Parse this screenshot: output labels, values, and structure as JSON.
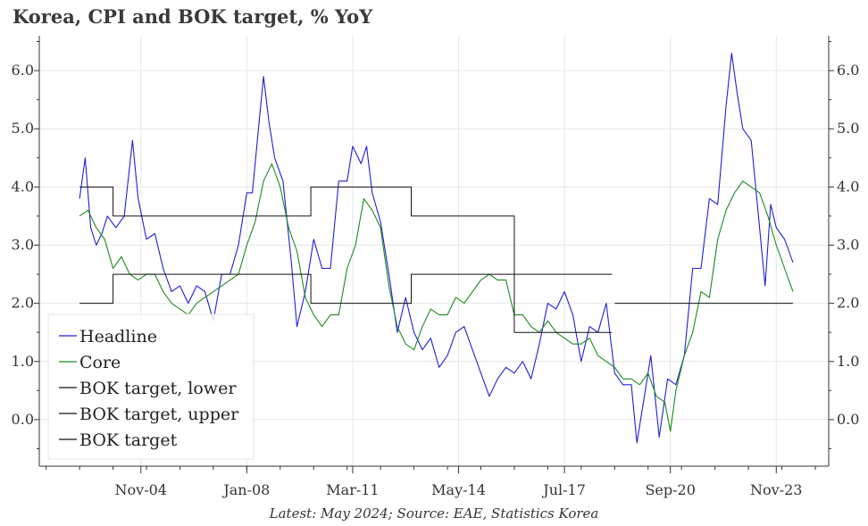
{
  "title": "Korea, CPI and BOK target, % YoY",
  "caption": "Latest: May 2024; Source: EAE, Statistics Korea",
  "colors": {
    "headline": "#1f1fd6",
    "core": "#1d8a1d",
    "target": "#111111",
    "grid": "#e6e6e6"
  },
  "chart_data": {
    "type": "line",
    "title": "Korea, CPI and BOK target, % YoY",
    "xlabel": "",
    "ylabel": "",
    "x_range": [
      "2002-12",
      "2024-05"
    ],
    "x_tick_labels": [
      "Nov-04",
      "Jan-08",
      "Mar-11",
      "May-14",
      "Jul-17",
      "Sep-20",
      "Nov-23"
    ],
    "x_tick_dates": [
      "2004-11",
      "2008-01",
      "2011-03",
      "2014-05",
      "2017-07",
      "2020-09",
      "2023-11"
    ],
    "ylim": [
      -0.8,
      6.6
    ],
    "y_ticks": [
      0.0,
      1.0,
      2.0,
      3.0,
      4.0,
      5.0,
      6.0
    ],
    "y_tick_labels": [
      "0.0",
      "1.0",
      "2.0",
      "3.0",
      "4.0",
      "5.0",
      "6.0"
    ],
    "grid": true,
    "legend_position": "bottom-left",
    "legend": [
      "Headline",
      "Core",
      "BOK target, lower",
      "BOK target, upper",
      "BOK target"
    ],
    "series": [
      {
        "name": "Headline",
        "points": [
          [
            "2003-01",
            3.8
          ],
          [
            "2003-03",
            4.5
          ],
          [
            "2003-05",
            3.3
          ],
          [
            "2003-07",
            3.0
          ],
          [
            "2003-09",
            3.2
          ],
          [
            "2003-11",
            3.5
          ],
          [
            "2004-02",
            3.3
          ],
          [
            "2004-05",
            3.5
          ],
          [
            "2004-08",
            4.8
          ],
          [
            "2004-10",
            3.8
          ],
          [
            "2005-01",
            3.1
          ],
          [
            "2005-04",
            3.2
          ],
          [
            "2005-07",
            2.6
          ],
          [
            "2005-10",
            2.2
          ],
          [
            "2006-01",
            2.3
          ],
          [
            "2006-04",
            2.0
          ],
          [
            "2006-07",
            2.3
          ],
          [
            "2006-10",
            2.2
          ],
          [
            "2007-01",
            1.7
          ],
          [
            "2007-04",
            2.5
          ],
          [
            "2007-07",
            2.5
          ],
          [
            "2007-10",
            3.0
          ],
          [
            "2008-01",
            3.9
          ],
          [
            "2008-03",
            3.9
          ],
          [
            "2008-05",
            4.9
          ],
          [
            "2008-07",
            5.9
          ],
          [
            "2008-09",
            5.1
          ],
          [
            "2008-11",
            4.5
          ],
          [
            "2009-02",
            4.1
          ],
          [
            "2009-05",
            2.7
          ],
          [
            "2009-07",
            1.6
          ],
          [
            "2009-10",
            2.2
          ],
          [
            "2010-01",
            3.1
          ],
          [
            "2010-04",
            2.6
          ],
          [
            "2010-07",
            2.6
          ],
          [
            "2010-10",
            4.1
          ],
          [
            "2011-01",
            4.1
          ],
          [
            "2011-03",
            4.7
          ],
          [
            "2011-06",
            4.4
          ],
          [
            "2011-08",
            4.7
          ],
          [
            "2011-10",
            3.9
          ],
          [
            "2012-01",
            3.4
          ],
          [
            "2012-04",
            2.5
          ],
          [
            "2012-07",
            1.5
          ],
          [
            "2012-10",
            2.1
          ],
          [
            "2013-01",
            1.5
          ],
          [
            "2013-04",
            1.2
          ],
          [
            "2013-07",
            1.4
          ],
          [
            "2013-10",
            0.9
          ],
          [
            "2014-01",
            1.1
          ],
          [
            "2014-04",
            1.5
          ],
          [
            "2014-07",
            1.6
          ],
          [
            "2014-10",
            1.2
          ],
          [
            "2015-01",
            0.8
          ],
          [
            "2015-04",
            0.4
          ],
          [
            "2015-07",
            0.7
          ],
          [
            "2015-10",
            0.9
          ],
          [
            "2016-01",
            0.8
          ],
          [
            "2016-04",
            1.0
          ],
          [
            "2016-07",
            0.7
          ],
          [
            "2016-10",
            1.3
          ],
          [
            "2017-01",
            2.0
          ],
          [
            "2017-04",
            1.9
          ],
          [
            "2017-07",
            2.2
          ],
          [
            "2017-10",
            1.8
          ],
          [
            "2018-01",
            1.0
          ],
          [
            "2018-04",
            1.6
          ],
          [
            "2018-07",
            1.5
          ],
          [
            "2018-10",
            2.0
          ],
          [
            "2019-01",
            0.8
          ],
          [
            "2019-04",
            0.6
          ],
          [
            "2019-07",
            0.6
          ],
          [
            "2019-09",
            -0.4
          ],
          [
            "2019-11",
            0.2
          ],
          [
            "2020-02",
            1.1
          ],
          [
            "2020-05",
            -0.3
          ],
          [
            "2020-08",
            0.7
          ],
          [
            "2020-11",
            0.6
          ],
          [
            "2021-02",
            1.1
          ],
          [
            "2021-05",
            2.6
          ],
          [
            "2021-08",
            2.6
          ],
          [
            "2021-11",
            3.8
          ],
          [
            "2022-02",
            3.7
          ],
          [
            "2022-05",
            5.4
          ],
          [
            "2022-07",
            6.3
          ],
          [
            "2022-09",
            5.6
          ],
          [
            "2022-11",
            5.0
          ],
          [
            "2023-02",
            4.8
          ],
          [
            "2023-05",
            3.3
          ],
          [
            "2023-07",
            2.3
          ],
          [
            "2023-09",
            3.7
          ],
          [
            "2023-11",
            3.3
          ],
          [
            "2024-02",
            3.1
          ],
          [
            "2024-05",
            2.7
          ]
        ]
      },
      {
        "name": "Core",
        "points": [
          [
            "2003-01",
            3.5
          ],
          [
            "2003-04",
            3.6
          ],
          [
            "2003-07",
            3.3
          ],
          [
            "2003-10",
            3.1
          ],
          [
            "2004-01",
            2.6
          ],
          [
            "2004-04",
            2.8
          ],
          [
            "2004-07",
            2.5
          ],
          [
            "2004-10",
            2.4
          ],
          [
            "2005-01",
            2.5
          ],
          [
            "2005-04",
            2.5
          ],
          [
            "2005-07",
            2.2
          ],
          [
            "2005-10",
            2.0
          ],
          [
            "2006-01",
            1.9
          ],
          [
            "2006-04",
            1.8
          ],
          [
            "2006-07",
            2.0
          ],
          [
            "2006-10",
            2.1
          ],
          [
            "2007-01",
            2.2
          ],
          [
            "2007-04",
            2.3
          ],
          [
            "2007-07",
            2.4
          ],
          [
            "2007-10",
            2.5
          ],
          [
            "2008-01",
            3.0
          ],
          [
            "2008-04",
            3.4
          ],
          [
            "2008-07",
            4.1
          ],
          [
            "2008-10",
            4.4
          ],
          [
            "2009-01",
            4.0
          ],
          [
            "2009-04",
            3.3
          ],
          [
            "2009-07",
            2.9
          ],
          [
            "2009-10",
            2.1
          ],
          [
            "2010-01",
            1.8
          ],
          [
            "2010-04",
            1.6
          ],
          [
            "2010-07",
            1.8
          ],
          [
            "2010-10",
            1.8
          ],
          [
            "2011-01",
            2.6
          ],
          [
            "2011-04",
            3.0
          ],
          [
            "2011-07",
            3.8
          ],
          [
            "2011-10",
            3.6
          ],
          [
            "2012-01",
            3.3
          ],
          [
            "2012-04",
            2.3
          ],
          [
            "2012-07",
            1.6
          ],
          [
            "2012-10",
            1.3
          ],
          [
            "2013-01",
            1.2
          ],
          [
            "2013-04",
            1.6
          ],
          [
            "2013-07",
            1.9
          ],
          [
            "2013-10",
            1.8
          ],
          [
            "2014-01",
            1.8
          ],
          [
            "2014-04",
            2.1
          ],
          [
            "2014-07",
            2.0
          ],
          [
            "2014-10",
            2.2
          ],
          [
            "2015-01",
            2.4
          ],
          [
            "2015-04",
            2.5
          ],
          [
            "2015-07",
            2.4
          ],
          [
            "2015-10",
            2.4
          ],
          [
            "2016-01",
            1.8
          ],
          [
            "2016-04",
            1.8
          ],
          [
            "2016-07",
            1.6
          ],
          [
            "2016-10",
            1.5
          ],
          [
            "2017-01",
            1.7
          ],
          [
            "2017-04",
            1.5
          ],
          [
            "2017-07",
            1.4
          ],
          [
            "2017-10",
            1.3
          ],
          [
            "2018-01",
            1.3
          ],
          [
            "2018-04",
            1.4
          ],
          [
            "2018-07",
            1.1
          ],
          [
            "2018-10",
            1.0
          ],
          [
            "2019-01",
            0.9
          ],
          [
            "2019-04",
            0.7
          ],
          [
            "2019-07",
            0.7
          ],
          [
            "2019-10",
            0.6
          ],
          [
            "2020-01",
            0.8
          ],
          [
            "2020-04",
            0.4
          ],
          [
            "2020-07",
            0.3
          ],
          [
            "2020-09",
            -0.2
          ],
          [
            "2020-11",
            0.5
          ],
          [
            "2021-02",
            1.1
          ],
          [
            "2021-05",
            1.5
          ],
          [
            "2021-08",
            2.2
          ],
          [
            "2021-11",
            2.1
          ],
          [
            "2022-02",
            3.1
          ],
          [
            "2022-05",
            3.6
          ],
          [
            "2022-08",
            3.9
          ],
          [
            "2022-11",
            4.1
          ],
          [
            "2023-02",
            4.0
          ],
          [
            "2023-05",
            3.9
          ],
          [
            "2023-08",
            3.5
          ],
          [
            "2023-11",
            3.0
          ],
          [
            "2024-02",
            2.6
          ],
          [
            "2024-05",
            2.2
          ]
        ]
      },
      {
        "name": "BOK target, lower",
        "points": [
          [
            "2003-01",
            2.0
          ],
          [
            "2004-01",
            2.0
          ],
          [
            "2004-01",
            2.5
          ],
          [
            "2009-12",
            2.5
          ],
          [
            "2009-12",
            2.0
          ],
          [
            "2012-12",
            2.0
          ],
          [
            "2012-12",
            2.5
          ],
          [
            "2016-01",
            2.5
          ],
          [
            "2016-01",
            1.5
          ],
          [
            "2018-12",
            1.5
          ]
        ]
      },
      {
        "name": "BOK target, upper",
        "points": [
          [
            "2003-01",
            4.0
          ],
          [
            "2004-01",
            4.0
          ],
          [
            "2004-01",
            3.5
          ],
          [
            "2009-12",
            3.5
          ],
          [
            "2009-12",
            4.0
          ],
          [
            "2012-12",
            4.0
          ],
          [
            "2012-12",
            3.5
          ],
          [
            "2016-01",
            3.5
          ],
          [
            "2016-01",
            2.5
          ],
          [
            "2018-12",
            2.5
          ]
        ]
      },
      {
        "name": "BOK target",
        "points": [
          [
            "2019-01",
            2.0
          ],
          [
            "2024-05",
            2.0
          ]
        ]
      }
    ]
  }
}
